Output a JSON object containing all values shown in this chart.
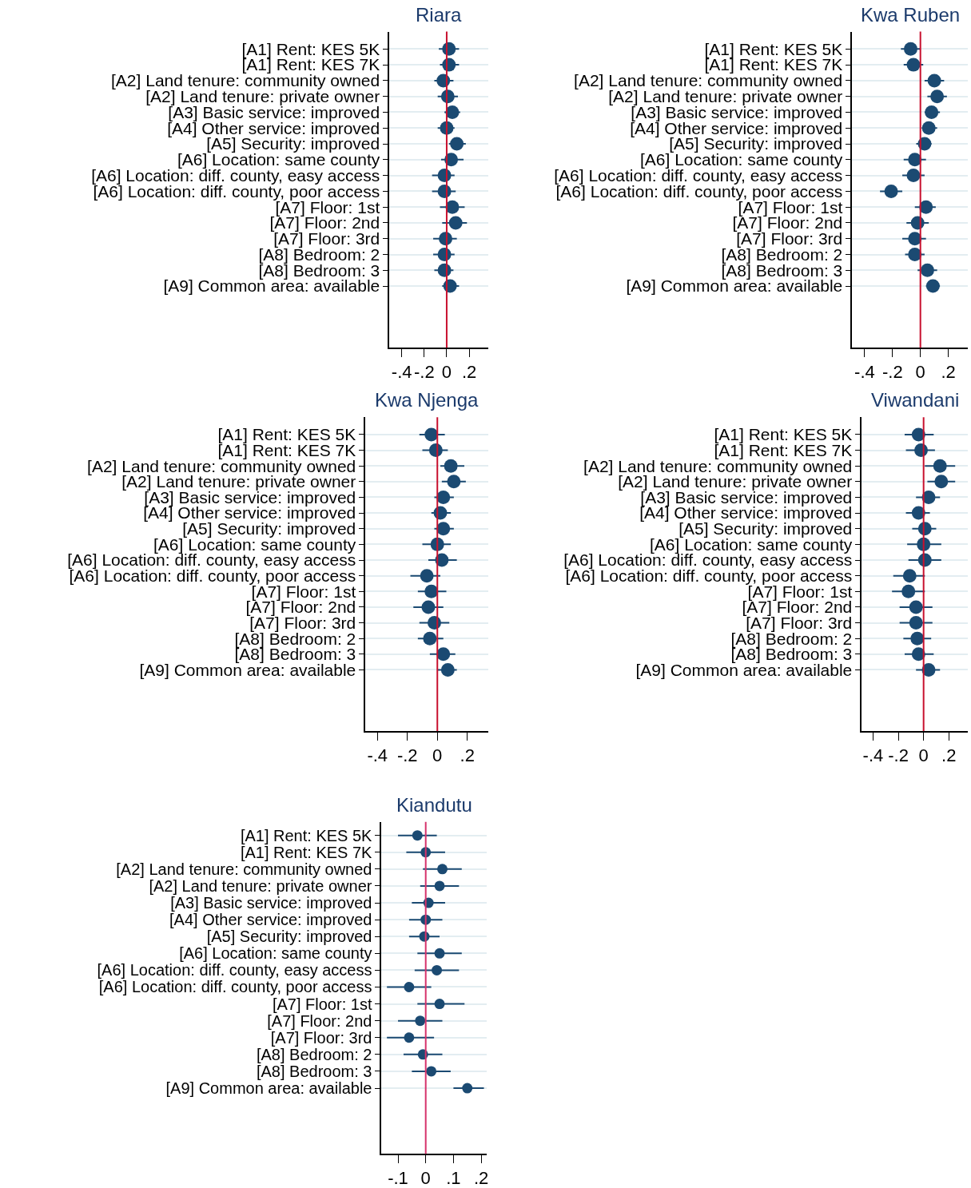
{
  "chart_data": [
    {
      "type": "scatter",
      "title": "Riara",
      "orientation": "horizontal",
      "grid": "y",
      "marker": "circle",
      "color": "#1b4a72",
      "categories": [
        "[A1] Rent: KES 5K",
        "[A1] Rent: KES 7K",
        "[A2] Land tenure: community owned",
        "[A2] Land tenure: private owner",
        "[A3] Basic service: improved",
        "[A4] Other service: improved",
        "[A5] Security: improved",
        "[A6] Location: same county",
        "[A6] Location: diff. county, easy access",
        "[A6] Location: diff. county, poor access",
        "[A7] Floor: 1st",
        "[A7] Floor: 2nd",
        "[A7] Floor: 3rd",
        "[A8] Bedroom: 2",
        "[A8] Bedroom: 3",
        "[A9] Common area: available"
      ],
      "values": [
        0.02,
        0.02,
        -0.03,
        0.01,
        0.05,
        0.0,
        0.09,
        0.04,
        -0.02,
        -0.02,
        0.05,
        0.08,
        -0.01,
        -0.02,
        -0.02,
        0.03
      ],
      "errors": [
        [
          -0.07,
          0.11
        ],
        [
          -0.06,
          0.11
        ],
        [
          -0.11,
          0.06
        ],
        [
          -0.08,
          0.1
        ],
        [
          -0.02,
          0.12
        ],
        [
          -0.08,
          0.07
        ],
        [
          0.02,
          0.17
        ],
        [
          -0.05,
          0.15
        ],
        [
          -0.13,
          0.07
        ],
        [
          -0.13,
          0.08
        ],
        [
          -0.06,
          0.16
        ],
        [
          -0.04,
          0.18
        ],
        [
          -0.12,
          0.09
        ],
        [
          -0.12,
          0.07
        ],
        [
          -0.11,
          0.06
        ],
        [
          -0.04,
          0.11
        ]
      ],
      "xlim": [
        -0.51,
        0.37
      ],
      "xticks": [
        {
          "value": -0.4,
          "label": "-.4"
        },
        {
          "value": -0.2,
          "label": "-.2"
        },
        0,
        {
          "value": 0.2,
          "label": ".2"
        }
      ],
      "ref_lines": [
        {
          "axis": "x",
          "value": 0,
          "color": "#c8102e"
        }
      ]
    },
    {
      "type": "scatter",
      "title": "Kwa Ruben",
      "orientation": "horizontal",
      "grid": "y",
      "marker": "circle",
      "color": "#1b4a72",
      "categories": [
        "[A1] Rent: KES 5K",
        "[A1] Rent: KES 7K",
        "[A2] Land tenure: community owned",
        "[A2] Land tenure: private owner",
        "[A3] Basic service: improved",
        "[A4] Other service: improved",
        "[A5] Security: improved",
        "[A6] Location: same county",
        "[A6] Location: diff. county, easy access",
        "[A6] Location: diff. county, poor access",
        "[A7] Floor: 1st",
        "[A7] Floor: 2nd",
        "[A7] Floor: 3rd",
        "[A8] Bedroom: 2",
        "[A8] Bedroom: 3",
        "[A9] Common area: available"
      ],
      "values": [
        -0.07,
        -0.05,
        0.1,
        0.12,
        0.08,
        0.06,
        0.03,
        -0.04,
        -0.05,
        -0.21,
        0.04,
        -0.02,
        -0.04,
        -0.04,
        0.05,
        0.09
      ],
      "errors": [
        [
          -0.14,
          0.0
        ],
        [
          -0.12,
          0.02
        ],
        [
          0.03,
          0.17
        ],
        [
          0.05,
          0.19
        ],
        [
          0.03,
          0.14
        ],
        [
          0.01,
          0.12
        ],
        [
          -0.03,
          0.08
        ],
        [
          -0.12,
          0.04
        ],
        [
          -0.13,
          0.03
        ],
        [
          -0.29,
          -0.13
        ],
        [
          -0.04,
          0.11
        ],
        [
          -0.1,
          0.06
        ],
        [
          -0.13,
          0.04
        ],
        [
          -0.11,
          0.03
        ],
        [
          -0.02,
          0.12
        ],
        [
          0.04,
          0.14
        ]
      ],
      "xlim": [
        -0.49,
        0.34
      ],
      "xticks": [
        {
          "value": -0.4,
          "label": "-.4"
        },
        {
          "value": -0.2,
          "label": "-.2"
        },
        0,
        {
          "value": 0.2,
          "label": ".2"
        }
      ],
      "ref_lines": [
        {
          "axis": "x",
          "value": 0,
          "color": "#c8102e"
        }
      ]
    },
    {
      "type": "scatter",
      "title": "Kwa Njenga",
      "orientation": "horizontal",
      "grid": "y",
      "marker": "circle",
      "color": "#1b4a72",
      "categories": [
        "[A1] Rent: KES 5K",
        "[A1] Rent: KES 7K",
        "[A2] Land tenure: community owned",
        "[A2] Land tenure: private owner",
        "[A3] Basic service: improved",
        "[A4] Other service: improved",
        "[A5] Security: improved",
        "[A6] Location: same county",
        "[A6] Location: diff. county, easy access",
        "[A6] Location: diff. county, poor access",
        "[A7] Floor: 1st",
        "[A7] Floor: 2nd",
        "[A7] Floor: 3rd",
        "[A8] Bedroom: 2",
        "[A8] Bedroom: 3",
        "[A9] Common area: available"
      ],
      "values": [
        -0.04,
        -0.01,
        0.09,
        0.11,
        0.04,
        0.02,
        0.04,
        0.0,
        0.03,
        -0.07,
        -0.04,
        -0.06,
        -0.02,
        -0.05,
        0.04,
        0.07
      ],
      "errors": [
        [
          -0.12,
          0.05
        ],
        [
          -0.1,
          0.07
        ],
        [
          0.02,
          0.18
        ],
        [
          0.03,
          0.19
        ],
        [
          -0.02,
          0.11
        ],
        [
          -0.04,
          0.09
        ],
        [
          -0.02,
          0.11
        ],
        [
          -0.1,
          0.09
        ],
        [
          -0.06,
          0.13
        ],
        [
          -0.18,
          0.02
        ],
        [
          -0.13,
          0.06
        ],
        [
          -0.16,
          0.04
        ],
        [
          -0.12,
          0.08
        ],
        [
          -0.13,
          0.04
        ],
        [
          -0.05,
          0.12
        ],
        [
          0.0,
          0.13
        ]
      ],
      "xlim": [
        -0.48,
        0.34
      ],
      "xticks": [
        {
          "value": -0.4,
          "label": "-.4"
        },
        {
          "value": -0.2,
          "label": "-.2"
        },
        0,
        {
          "value": 0.2,
          "label": ".2"
        }
      ],
      "ref_lines": [
        {
          "axis": "x",
          "value": 0,
          "color": "#c8102e"
        }
      ]
    },
    {
      "type": "scatter",
      "title": "Viwandani",
      "orientation": "horizontal",
      "grid": "y",
      "marker": "circle",
      "color": "#1b4a72",
      "categories": [
        "[A1] Rent: KES 5K",
        "[A1] Rent: KES 7K",
        "[A2] Land tenure: community owned",
        "[A2] Land tenure: private owner",
        "[A3] Basic service: improved",
        "[A4] Other service: improved",
        "[A5] Security: improved",
        "[A6] Location: same county",
        "[A6] Location: diff. county, easy access",
        "[A6] Location: diff. county, poor access",
        "[A7] Floor: 1st",
        "[A7] Floor: 2nd",
        "[A7] Floor: 3rd",
        "[A8] Bedroom: 2",
        "[A8] Bedroom: 3",
        "[A9] Common area: available"
      ],
      "values": [
        -0.04,
        -0.02,
        0.13,
        0.14,
        0.04,
        -0.04,
        0.01,
        0.0,
        0.01,
        -0.11,
        -0.12,
        -0.06,
        -0.06,
        -0.05,
        -0.04,
        0.04
      ],
      "errors": [
        [
          -0.15,
          0.08
        ],
        [
          -0.14,
          0.09
        ],
        [
          0.01,
          0.25
        ],
        [
          0.03,
          0.25
        ],
        [
          -0.06,
          0.13
        ],
        [
          -0.14,
          0.05
        ],
        [
          -0.09,
          0.1
        ],
        [
          -0.13,
          0.14
        ],
        [
          -0.12,
          0.14
        ],
        [
          -0.24,
          0.01
        ],
        [
          -0.25,
          0.01
        ],
        [
          -0.19,
          0.07
        ],
        [
          -0.19,
          0.07
        ],
        [
          -0.16,
          0.06
        ],
        [
          -0.15,
          0.08
        ],
        [
          -0.06,
          0.13
        ]
      ],
      "xlim": [
        -0.49,
        0.35
      ],
      "xticks": [
        {
          "value": -0.4,
          "label": "-.4"
        },
        {
          "value": -0.2,
          "label": "-.2"
        },
        0,
        {
          "value": 0.2,
          "label": ".2"
        }
      ],
      "ref_lines": [
        {
          "axis": "x",
          "value": 0,
          "color": "#c8102e"
        }
      ]
    },
    {
      "type": "scatter",
      "title": "Kiandutu",
      "orientation": "horizontal",
      "grid": "y",
      "marker": "circle",
      "color": "#1b4a72",
      "categories": [
        "[A1] Rent: KES 5K",
        "[A1] Rent: KES 7K",
        "[A2] Land tenure: community owned",
        "[A2] Land tenure: private owner",
        "[A3] Basic service: improved",
        "[A4] Other service: improved",
        "[A5] Security: improved",
        "[A6] Location: same county",
        "[A6] Location: diff. county, easy access",
        "[A6] Location: diff. county, poor access",
        "[A7] Floor: 1st",
        "[A7] Floor: 2nd",
        "[A7] Floor: 3rd",
        "[A8] Bedroom: 2",
        "[A8] Bedroom: 3",
        "[A9] Common area: available"
      ],
      "values": [
        -0.03,
        0.0,
        0.06,
        0.05,
        0.01,
        0.0,
        -0.005,
        0.05,
        0.04,
        -0.06,
        0.05,
        -0.02,
        -0.06,
        -0.01,
        0.02,
        0.15
      ],
      "errors": [
        [
          -0.1,
          0.04
        ],
        [
          -0.07,
          0.07
        ],
        [
          -0.01,
          0.13
        ],
        [
          -0.02,
          0.12
        ],
        [
          -0.05,
          0.07
        ],
        [
          -0.06,
          0.06
        ],
        [
          -0.06,
          0.05
        ],
        [
          -0.03,
          0.13
        ],
        [
          -0.04,
          0.12
        ],
        [
          -0.14,
          0.02
        ],
        [
          -0.03,
          0.14
        ],
        [
          -0.1,
          0.06
        ],
        [
          -0.14,
          0.03
        ],
        [
          -0.08,
          0.06
        ],
        [
          -0.05,
          0.09
        ],
        [
          0.1,
          0.21
        ]
      ],
      "xlim": [
        -0.16,
        0.22
      ],
      "xticks": [
        {
          "value": -0.1,
          "label": "-.1"
        },
        0,
        {
          "value": 0.1,
          "label": ".1"
        },
        {
          "value": 0.2,
          "label": ".2"
        }
      ],
      "ref_lines": [
        {
          "axis": "x",
          "value": 0,
          "color": "#d6336c"
        }
      ]
    }
  ]
}
